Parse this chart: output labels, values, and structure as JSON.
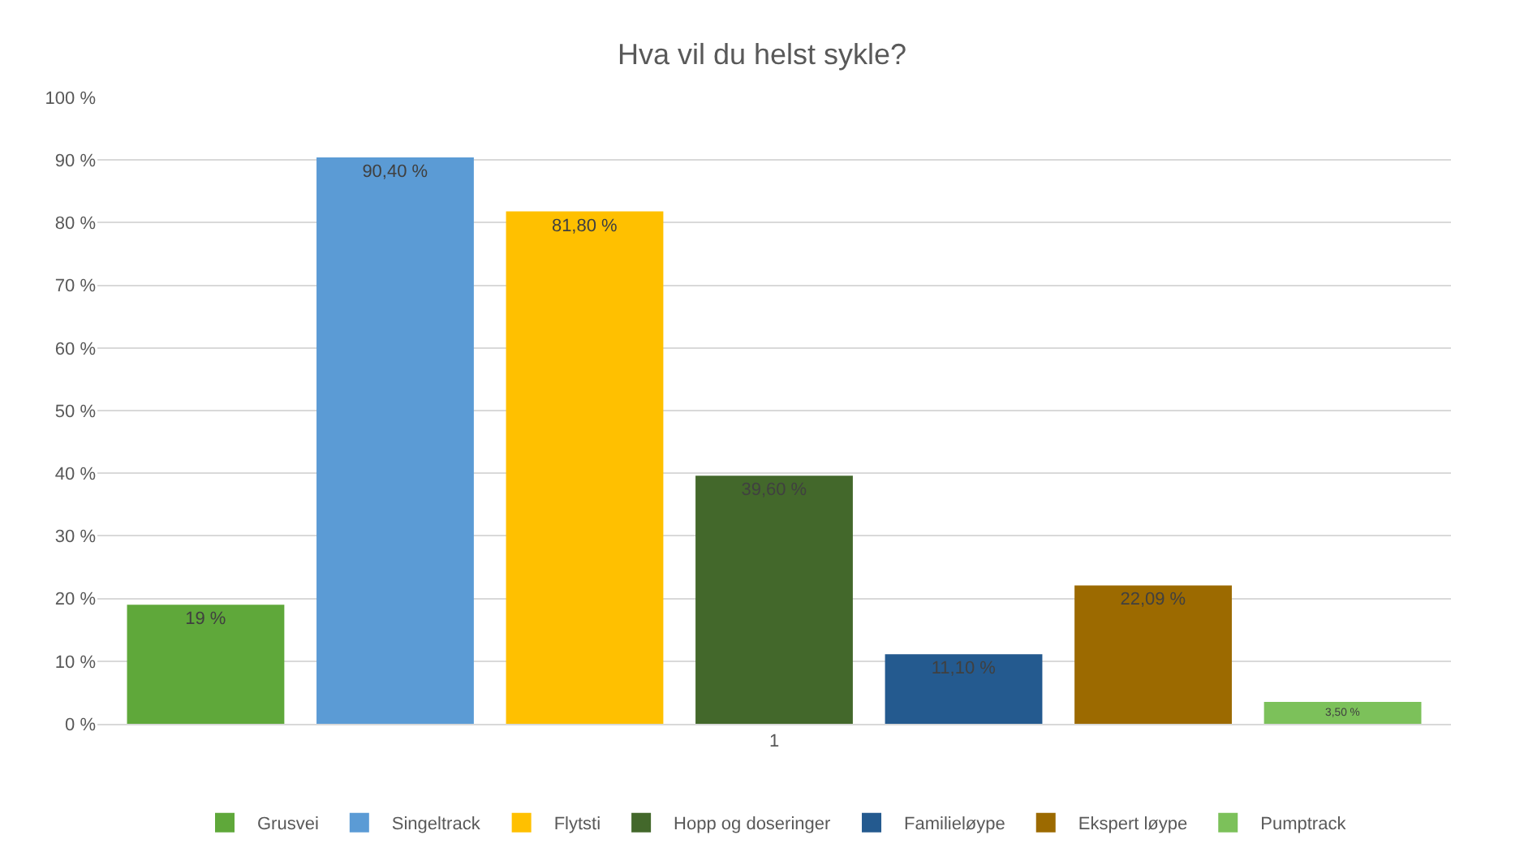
{
  "chart_data": {
    "type": "bar",
    "title": "Hva vil du helst sykle?",
    "categories": [
      "1"
    ],
    "series": [
      {
        "name": "Grusvei",
        "color": "#5fa83a",
        "values": [
          19
        ],
        "value_labels": [
          "19 %"
        ]
      },
      {
        "name": "Singeltrack",
        "color": "#5b9bd5",
        "values": [
          90.4
        ],
        "value_labels": [
          "90,40 %"
        ]
      },
      {
        "name": "Flytsti",
        "color": "#ffc000",
        "values": [
          81.8
        ],
        "value_labels": [
          "81,80 %"
        ]
      },
      {
        "name": "Hopp og doseringer",
        "color": "#43682b",
        "values": [
          39.6
        ],
        "value_labels": [
          "39,60 %"
        ]
      },
      {
        "name": "Familieløype",
        "color": "#245a8f",
        "values": [
          11.1
        ],
        "value_labels": [
          "11,10 %"
        ]
      },
      {
        "name": "Ekspert løype",
        "color": "#9c6a00",
        "values": [
          22.09
        ],
        "value_labels": [
          "22,09 %"
        ]
      },
      {
        "name": "Pumptrack",
        "color": "#7cc15a",
        "values": [
          3.5
        ],
        "value_labels": [
          "3,50 %"
        ]
      }
    ],
    "ylim": [
      0,
      100
    ],
    "yticks": [
      {
        "value": 0,
        "label": "0 %"
      },
      {
        "value": 10,
        "label": "10 %"
      },
      {
        "value": 20,
        "label": "20 %"
      },
      {
        "value": 30,
        "label": "30 %"
      },
      {
        "value": 40,
        "label": "40 %"
      },
      {
        "value": 50,
        "label": "50 %"
      },
      {
        "value": 60,
        "label": "60 %"
      },
      {
        "value": 70,
        "label": "70 %"
      },
      {
        "value": 80,
        "label": "80 %"
      },
      {
        "value": 90,
        "label": "90 %"
      },
      {
        "value": 100,
        "label": "100 %"
      }
    ],
    "grid": "y",
    "legend": "bottom"
  }
}
